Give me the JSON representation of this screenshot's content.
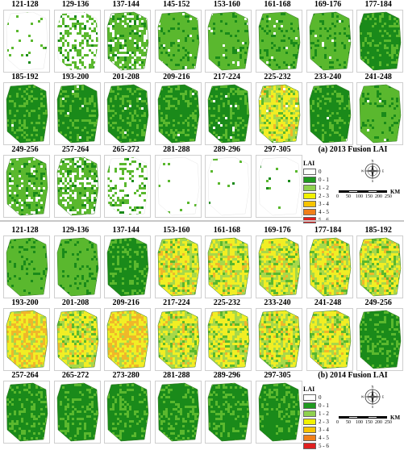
{
  "panel_2013": {
    "title": "(a) 2013 Fusion LAI",
    "periods": [
      {
        "label": "121-128",
        "cover": 0.06,
        "level": 2
      },
      {
        "label": "129-136",
        "cover": 0.4,
        "level": 2
      },
      {
        "label": "137-144",
        "cover": 0.75,
        "level": 2
      },
      {
        "label": "145-152",
        "cover": 0.96,
        "level": 2
      },
      {
        "label": "153-160",
        "cover": 0.97,
        "level": 2
      },
      {
        "label": "161-168",
        "cover": 0.98,
        "level": 2
      },
      {
        "label": "169-176",
        "cover": 0.99,
        "level": 2
      },
      {
        "label": "177-184",
        "cover": 1.0,
        "level": 1
      },
      {
        "label": "185-192",
        "cover": 0.99,
        "level": 1
      },
      {
        "label": "193-200",
        "cover": 0.99,
        "level": 1
      },
      {
        "label": "201-208",
        "cover": 0.99,
        "level": 1
      },
      {
        "label": "209-216",
        "cover": 0.99,
        "level": 1
      },
      {
        "label": "217-224",
        "cover": 0.97,
        "level": 1
      },
      {
        "label": "225-232",
        "cover": 0.98,
        "level": 3
      },
      {
        "label": "233-240",
        "cover": 0.99,
        "level": 1
      },
      {
        "label": "241-248",
        "cover": 0.99,
        "level": 2
      },
      {
        "label": "249-256",
        "cover": 0.85,
        "level": 2
      },
      {
        "label": "257-264",
        "cover": 0.7,
        "level": 2
      },
      {
        "label": "265-272",
        "cover": 0.25,
        "level": 2
      },
      {
        "label": "281-288",
        "cover": 0.02,
        "level": 2
      },
      {
        "label": "289-296",
        "cover": 0.03,
        "level": 2
      },
      {
        "label": "297-305",
        "cover": 0.02,
        "level": 2
      }
    ]
  },
  "panel_2014": {
    "title": "(b) 2014 Fusion LAI",
    "periods": [
      {
        "label": "121-128",
        "cover": 1.0,
        "level": 2
      },
      {
        "label": "129-136",
        "cover": 1.0,
        "level": 2
      },
      {
        "label": "137-144",
        "cover": 1.0,
        "level": 1
      },
      {
        "label": "153-160",
        "cover": 1.0,
        "level": 3
      },
      {
        "label": "161-168",
        "cover": 1.0,
        "level": 3
      },
      {
        "label": "169-176",
        "cover": 1.0,
        "level": 3
      },
      {
        "label": "177-184",
        "cover": 1.0,
        "level": 3
      },
      {
        "label": "185-192",
        "cover": 1.0,
        "level": 3
      },
      {
        "label": "193-200",
        "cover": 1.0,
        "level": 4
      },
      {
        "label": "201-208",
        "cover": 1.0,
        "level": 3
      },
      {
        "label": "209-216",
        "cover": 1.0,
        "level": 4
      },
      {
        "label": "217-224",
        "cover": 1.0,
        "level": 3
      },
      {
        "label": "225-232",
        "cover": 1.0,
        "level": 3
      },
      {
        "label": "233-240",
        "cover": 1.0,
        "level": 3
      },
      {
        "label": "241-248",
        "cover": 1.0,
        "level": 3
      },
      {
        "label": "249-256",
        "cover": 1.0,
        "level": 1
      },
      {
        "label": "257-264",
        "cover": 1.0,
        "level": 1
      },
      {
        "label": "265-272",
        "cover": 1.0,
        "level": 1
      },
      {
        "label": "273-280",
        "cover": 1.0,
        "level": 1
      },
      {
        "label": "281-288",
        "cover": 1.0,
        "level": 1
      },
      {
        "label": "289-296",
        "cover": 1.0,
        "level": 1
      },
      {
        "label": "297-305",
        "cover": 1.0,
        "level": 1
      }
    ]
  },
  "legend": {
    "title": "LAI",
    "classes": [
      {
        "label": "0",
        "color": "#ffffff"
      },
      {
        "label": "0 - 1",
        "color": "#1f9a1f"
      },
      {
        "label": "1 - 2",
        "color": "#8fd14f"
      },
      {
        "label": "2 - 3",
        "color": "#f2f200"
      },
      {
        "label": "3 - 4",
        "color": "#f7c400"
      },
      {
        "label": "4 - 5",
        "color": "#f07f1a"
      },
      {
        "label": "5 - 6",
        "color": "#e02020"
      }
    ]
  },
  "compass": {
    "n": "N",
    "s": "S",
    "e": "E",
    "w": "W"
  },
  "scale_bar": {
    "ticks": [
      "0",
      "50",
      "100",
      "150",
      "200",
      "250"
    ],
    "unit": "KM"
  },
  "colors": {
    "green_dark": "#1a8a1a",
    "green_mid": "#5ab82e",
    "green_light": "#a7d84a",
    "yellow": "#f1ee24",
    "orange": "#f0b72a"
  }
}
